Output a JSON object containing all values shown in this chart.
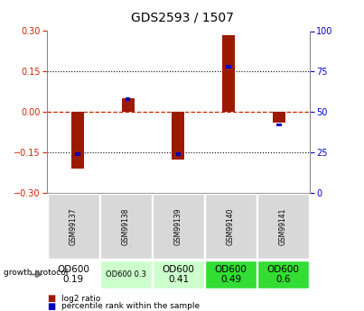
{
  "title": "GDS2593 / 1507",
  "samples": [
    "GSM99137",
    "GSM99138",
    "GSM99139",
    "GSM99140",
    "GSM99141"
  ],
  "log2_ratio": [
    -0.21,
    0.05,
    -0.175,
    0.285,
    -0.038
  ],
  "percentile_rank": [
    24,
    58,
    24,
    78,
    42
  ],
  "ylim_left": [
    -0.3,
    0.3
  ],
  "ylim_right": [
    0,
    100
  ],
  "yticks_left": [
    -0.3,
    -0.15,
    0,
    0.15,
    0.3
  ],
  "yticks_right": [
    0,
    25,
    50,
    75,
    100
  ],
  "bar_color_red": "#9b1a00",
  "bar_color_blue": "#0000bb",
  "zero_line_color": "#cc2200",
  "protocol_labels": [
    "OD600\n0.19",
    "OD600 0.3",
    "OD600\n0.41",
    "OD600\n0.49",
    "OD600\n0.6"
  ],
  "protocol_bg": [
    "#ffffff",
    "#ccffcc",
    "#ccffcc",
    "#33dd33",
    "#33dd33"
  ],
  "protocol_fontsize": [
    7.5,
    6,
    7.5,
    7.5,
    7.5
  ],
  "grid_bg": "#d8d8d8",
  "bar_width": 0.25,
  "blue_bar_width": 0.1,
  "blue_bar_height": 0.012
}
